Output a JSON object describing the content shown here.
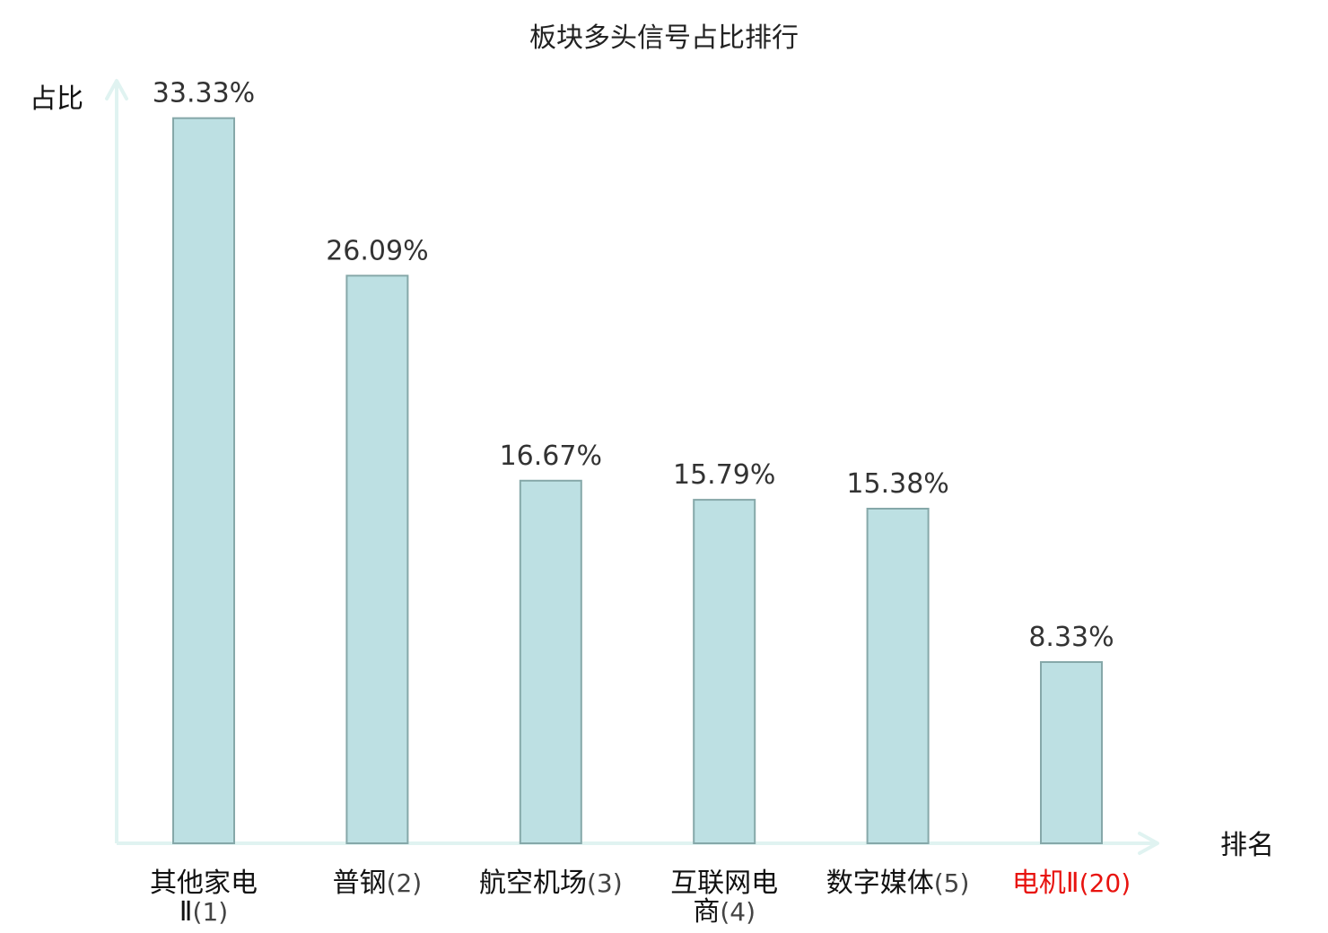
{
  "chart_data": {
    "type": "bar",
    "title": "板块多头信号占比排行",
    "xlabel": "排名",
    "ylabel": "占比",
    "categories": [
      {
        "name": "其他家电Ⅱ",
        "rank": "(1)",
        "highlight": false
      },
      {
        "name": "普钢",
        "rank": "(2)",
        "highlight": false
      },
      {
        "name": "航空机场",
        "rank": "(3)",
        "highlight": false
      },
      {
        "name": "互联网电商",
        "rank": "(4)",
        "highlight": false
      },
      {
        "name": "数字媒体",
        "rank": "(5)",
        "highlight": false
      },
      {
        "name": "电机Ⅱ",
        "rank": "(20)",
        "highlight": true
      }
    ],
    "values": [
      33.33,
      26.09,
      16.67,
      15.79,
      15.38,
      8.33
    ],
    "value_labels": [
      "33.33%",
      "26.09%",
      "16.67%",
      "15.79%",
      "15.38%",
      "8.33%"
    ],
    "ylim": [
      0,
      35
    ],
    "grid": false,
    "colors": {
      "bar_fill": "#bde0e3",
      "bar_stroke": "#86a8a9",
      "axis": "#e0f3f1",
      "label_normal": "#111111",
      "label_highlight": "#e8130f",
      "rank_normal": "#444444"
    }
  }
}
